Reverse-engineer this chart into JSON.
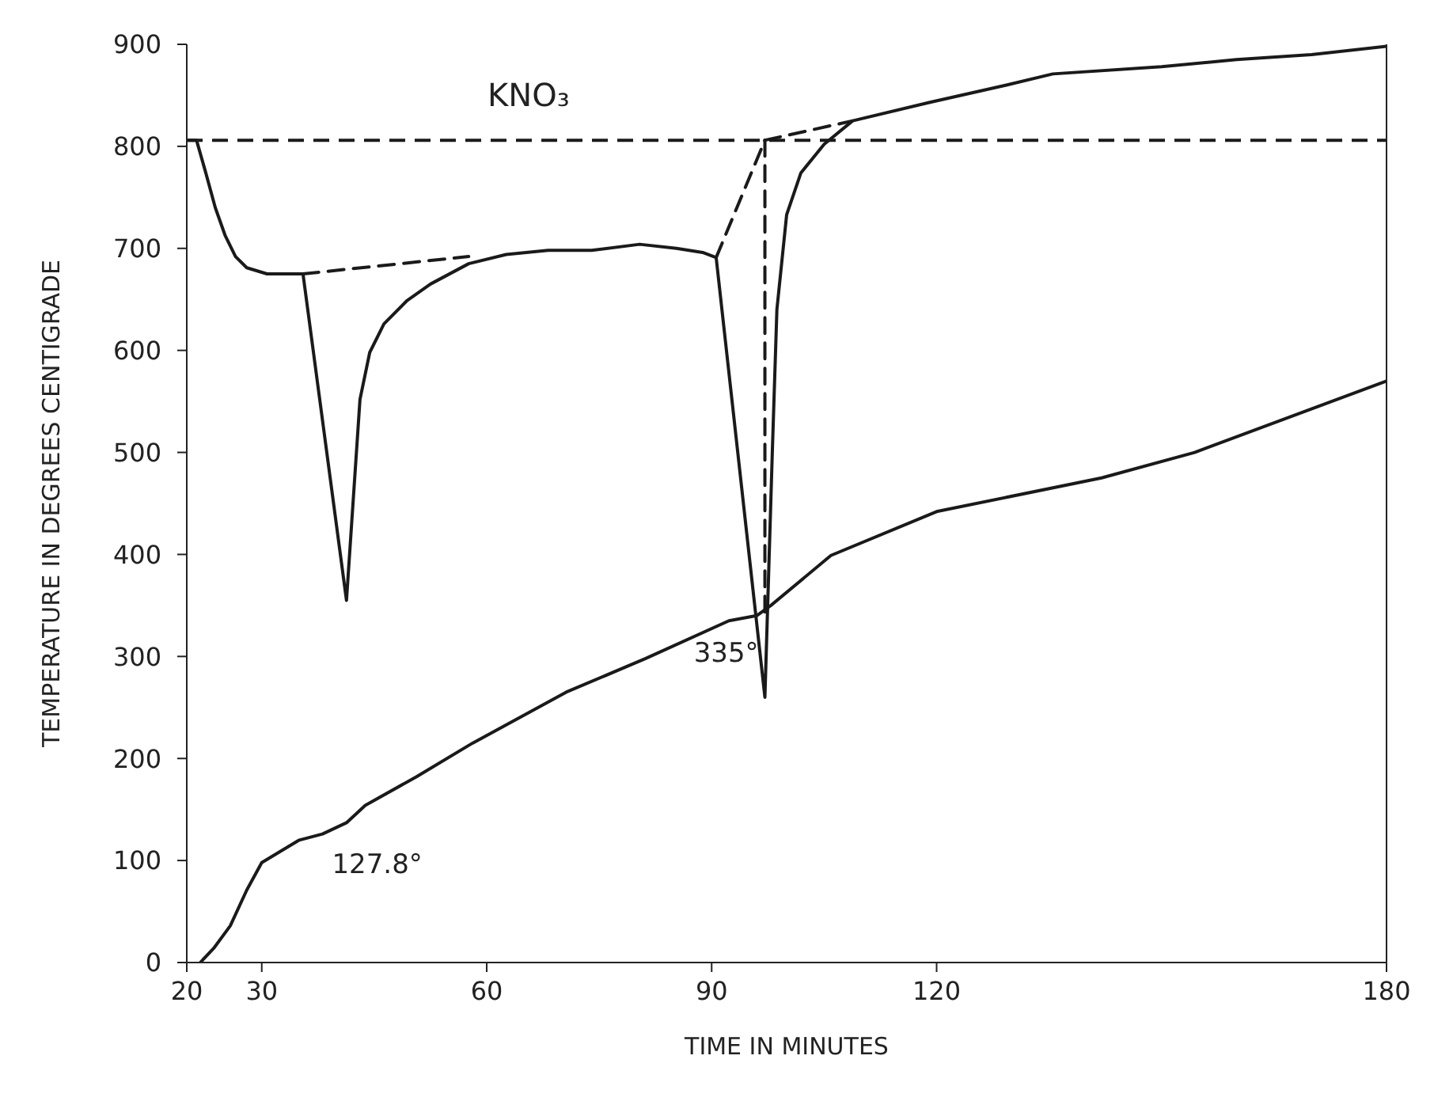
{
  "chart_data": {
    "type": "line",
    "title": "KNO₃",
    "xlabel": "TIME IN MINUTES",
    "ylabel": "TEMPERATURE IN DEGREES CENTIGRADE",
    "xlim": [
      20,
      180
    ],
    "xticks": [
      20,
      30,
      60,
      90,
      120,
      180
    ],
    "ylim": [
      0,
      900
    ],
    "yticks": [
      0,
      100,
      200,
      300,
      400,
      500,
      600,
      700,
      800,
      900
    ],
    "grid": false,
    "legend": false,
    "marker": "none",
    "line_style": "solid",
    "series": [
      {
        "color": "#1a1a1a",
        "x": [
          20,
          21.3,
          22.5,
          23.8,
          25.1,
          26.5,
          28,
          30.7,
          35.5,
          41.3,
          43.1,
          44.4,
          46.3,
          49.4,
          52.5,
          57.6,
          62.6,
          68.2,
          74,
          80.4,
          85.3,
          88.8,
          90.6,
          97.1,
          98.1,
          98.7,
          100,
          101.9,
          105,
          108.8,
          119,
          129.3,
          135.5,
          150,
          160,
          170,
          180
        ],
        "values": [
          806,
          806,
          775,
          740,
          713,
          692,
          681,
          675,
          675,
          355,
          552,
          598,
          626,
          649,
          665,
          685,
          694,
          698,
          698,
          704,
          700,
          696,
          691,
          260,
          503,
          640,
          733,
          774,
          802,
          825,
          843,
          860,
          871,
          878,
          885,
          890,
          898
        ]
      },
      {
        "color": "#1a1a1a",
        "x": [
          21.8,
          23.6,
          25.8,
          28,
          30,
          35,
          38.1,
          41.3,
          43.8,
          50.6,
          58.1,
          70.6,
          81.2,
          92.3,
          96,
          97.9,
          105.9,
          120,
          142,
          154.4,
          180
        ],
        "values": [
          0,
          14,
          36,
          71,
          98,
          120,
          126,
          137,
          154,
          182,
          215,
          265,
          298,
          335,
          340,
          350,
          399,
          442,
          475,
          500,
          570
        ]
      },
      {
        "color": "#1a1a1a",
        "line_style": "dashed",
        "x": [
          35.5,
          57.6
        ],
        "values": [
          675,
          692
        ]
      },
      {
        "color": "#1a1a1a",
        "line_style": "dashed",
        "x": [
          90.6,
          97.1
        ],
        "values": [
          691,
          806
        ]
      },
      {
        "color": "#1a1a1a",
        "line_style": "dashed",
        "x": [
          97.1,
          97.1
        ],
        "values": [
          806,
          340
        ]
      },
      {
        "color": "#1a1a1a",
        "line_style": "dashed",
        "x": [
          97.1,
          108.8
        ],
        "values": [
          806,
          825
        ]
      }
    ],
    "ref_lines": [
      {
        "axis": "y",
        "value": 806,
        "color": "#1a1a1a",
        "line_style": "dashed"
      }
    ],
    "annotations": [
      {
        "text": "127.8°",
        "x": 38.1,
        "y": 127.8
      },
      {
        "text": "335°",
        "x": 95,
        "y": 335
      }
    ]
  }
}
